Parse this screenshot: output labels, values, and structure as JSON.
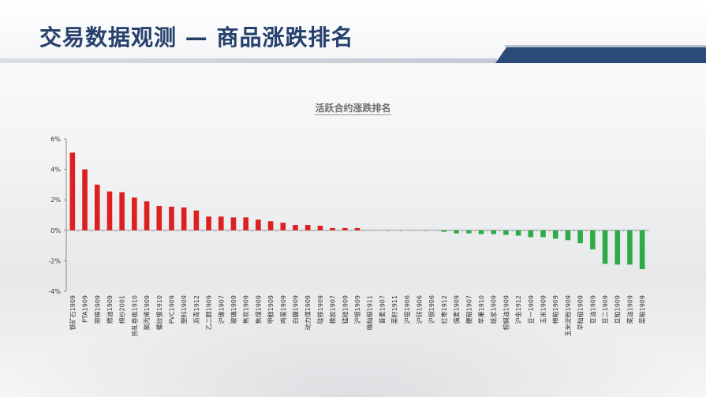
{
  "header": {
    "title": "交易数据观测 — 商品涨跌排名"
  },
  "colors": {
    "positive": "#dd1f1f",
    "negative": "#2faa48",
    "title": "#25406b",
    "accent": "#2c4a78"
  },
  "chart_data": {
    "type": "bar",
    "title": "活跃合约涨跌排名",
    "xlabel": "",
    "ylabel": "",
    "ylim": [
      -4,
      6
    ],
    "yticks": [
      "6%",
      "4%",
      "2%",
      "0%",
      "-2%",
      "-4%"
    ],
    "ytick_values": [
      6,
      4,
      2,
      0,
      -2,
      -4
    ],
    "categories": [
      "铁矿石1909",
      "PTA1909",
      "郑棉1909",
      "燃油1909",
      "棉纱2001",
      "热轧卷板1910",
      "聚丙烯1909",
      "螺纹钢1910",
      "PVC1909",
      "塑料1909",
      "沥青1912",
      "乙二醇1909",
      "沪镍1907",
      "玻璃1909",
      "焦炭1909",
      "焦煤1909",
      "甲醇1909",
      "鸡蛋1909",
      "白糖1909",
      "动力煤1909",
      "硅铁1909",
      "橡胶1907",
      "锰硅1909",
      "沪银1909",
      "晚籼稻1911",
      "普麦1907",
      "菜籽1911",
      "沪铝1906",
      "沪锌1906",
      "沪铜1906",
      "红枣1912",
      "强麦1909",
      "粳稻1907",
      "苹果1910",
      "纸浆1909",
      "棕榈油1909",
      "沪金1912",
      "豆一1909",
      "玉米1909",
      "棉粕1909",
      "玉米淀粉1909",
      "早籼稻1909",
      "豆油1909",
      "豆二1909",
      "豆粕1909",
      "菜油1909",
      "菜粕1909"
    ],
    "values": [
      5.1,
      4.0,
      3.0,
      2.55,
      2.5,
      2.15,
      1.9,
      1.6,
      1.55,
      1.5,
      1.3,
      0.9,
      0.9,
      0.85,
      0.85,
      0.7,
      0.6,
      0.5,
      0.35,
      0.35,
      0.3,
      0.15,
      0.15,
      0.15,
      0,
      0,
      0,
      0,
      0,
      0,
      -0.1,
      -0.2,
      -0.2,
      -0.25,
      -0.25,
      -0.3,
      -0.35,
      -0.45,
      -0.45,
      -0.55,
      -0.65,
      -0.85,
      -1.25,
      -2.2,
      -2.25,
      -2.25,
      -2.55
    ]
  }
}
